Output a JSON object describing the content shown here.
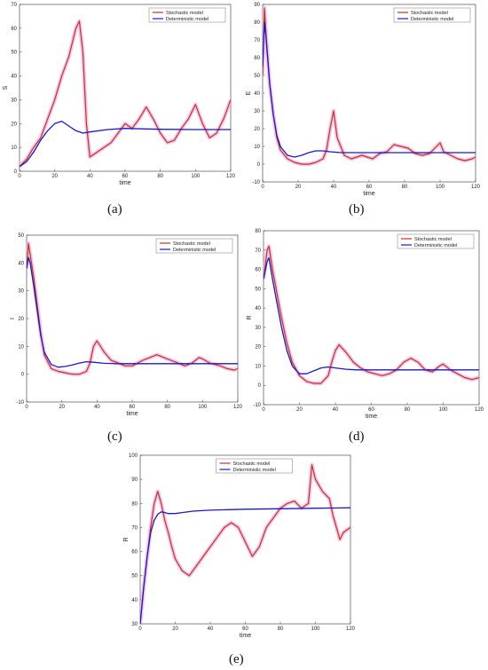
{
  "panel_labels": [
    "(a)",
    "(b)",
    "(c)",
    "(d)",
    "(e)"
  ],
  "colors": {
    "stochastic": "#c8321a",
    "band": "#f0b8e8",
    "deterministic": "#1a1ac8"
  },
  "chart_data": [
    {
      "type": "line",
      "title": "",
      "xlabel": "time",
      "ylabel": "S",
      "xlim": [
        0,
        120
      ],
      "ylim": [
        0,
        70
      ],
      "xticks": [
        0,
        20,
        40,
        60,
        80,
        100,
        120
      ],
      "yticks": [
        0,
        10,
        20,
        30,
        40,
        50,
        60,
        70
      ],
      "legend": {
        "position": "top-right",
        "entries": [
          "Stochastic model",
          "Deterministic model"
        ]
      },
      "series": [
        {
          "name": "Stochastic model",
          "x": [
            0,
            4,
            8,
            12,
            16,
            20,
            24,
            28,
            32,
            34,
            36,
            38,
            40,
            44,
            48,
            52,
            56,
            60,
            64,
            68,
            72,
            76,
            80,
            84,
            88,
            92,
            96,
            100,
            104,
            108,
            112,
            116,
            120
          ],
          "y": [
            2,
            5,
            10,
            14,
            22,
            30,
            40,
            48,
            60,
            63,
            50,
            20,
            6,
            8,
            10,
            12,
            16,
            20,
            18,
            22,
            27,
            22,
            16,
            12,
            13,
            18,
            22,
            28,
            20,
            14,
            16,
            22,
            30
          ]
        },
        {
          "name": "Deterministic model",
          "x": [
            0,
            4,
            8,
            12,
            16,
            20,
            24,
            28,
            32,
            36,
            40,
            50,
            60,
            70,
            80,
            100,
            120
          ],
          "y": [
            2,
            4,
            8,
            13,
            17,
            20,
            21,
            19,
            17,
            16,
            16.5,
            17.5,
            18,
            17.8,
            17.6,
            17.5,
            17.5
          ]
        }
      ]
    },
    {
      "type": "line",
      "title": "",
      "xlabel": "time",
      "ylabel": "E",
      "xlim": [
        0,
        120
      ],
      "ylim": [
        -10,
        90
      ],
      "xticks": [
        0,
        20,
        40,
        60,
        80,
        100,
        120
      ],
      "yticks": [
        -10,
        0,
        10,
        20,
        30,
        40,
        50,
        60,
        70,
        80,
        90
      ],
      "legend": {
        "position": "top-right",
        "entries": [
          "Stochastic model",
          "Deterministic model"
        ]
      },
      "series": [
        {
          "name": "Stochastic model",
          "x": [
            0,
            1,
            2,
            4,
            6,
            8,
            10,
            14,
            18,
            22,
            26,
            30,
            34,
            36,
            38,
            40,
            42,
            46,
            50,
            56,
            62,
            66,
            70,
            74,
            78,
            82,
            86,
            90,
            94,
            98,
            100,
            102,
            106,
            110,
            114,
            118,
            120
          ],
          "y": [
            50,
            88,
            72,
            45,
            28,
            15,
            8,
            3,
            1,
            0,
            0,
            1,
            3,
            8,
            20,
            30,
            15,
            5,
            3,
            5,
            3,
            6,
            7,
            11,
            10,
            9,
            6,
            5,
            6,
            10,
            12,
            7,
            5,
            3,
            2,
            3,
            4
          ]
        },
        {
          "name": "Deterministic model",
          "x": [
            0,
            1,
            2,
            4,
            6,
            8,
            10,
            14,
            18,
            22,
            26,
            30,
            34,
            38,
            44,
            50,
            60,
            80,
            100,
            120
          ],
          "y": [
            55,
            80,
            70,
            45,
            28,
            16,
            10,
            5,
            4,
            5,
            6.5,
            7.5,
            7.5,
            7,
            6.5,
            6.5,
            6.5,
            6.5,
            6.5,
            6.5
          ]
        }
      ]
    },
    {
      "type": "line",
      "title": "",
      "xlabel": "time",
      "ylabel": "I",
      "xlim": [
        0,
        120
      ],
      "ylim": [
        -10,
        50
      ],
      "xticks": [
        0,
        20,
        40,
        60,
        80,
        100,
        120
      ],
      "yticks": [
        -10,
        0,
        10,
        20,
        30,
        40,
        50
      ],
      "legend": {
        "position": "top-right",
        "entries": [
          "Stochastic model",
          "Deterministic model"
        ]
      },
      "series": [
        {
          "name": "Stochastic model",
          "x": [
            0,
            1,
            2,
            4,
            6,
            8,
            10,
            14,
            18,
            22,
            26,
            30,
            34,
            36,
            38,
            40,
            44,
            48,
            52,
            56,
            60,
            66,
            70,
            74,
            78,
            82,
            86,
            90,
            94,
            98,
            100,
            104,
            110,
            114,
            118,
            120
          ],
          "y": [
            38,
            47,
            43,
            35,
            25,
            15,
            7,
            2,
            1,
            0.5,
            0,
            0,
            1,
            4,
            10,
            12,
            8,
            5,
            4,
            3,
            3,
            5,
            6,
            7,
            6,
            5,
            4,
            3,
            4,
            6,
            5.5,
            4,
            3,
            2,
            1.5,
            2
          ]
        },
        {
          "name": "Deterministic model",
          "x": [
            0,
            1,
            2,
            4,
            6,
            8,
            10,
            14,
            18,
            22,
            26,
            30,
            34,
            38,
            44,
            50,
            60,
            80,
            100,
            120
          ],
          "y": [
            38,
            42,
            40,
            32,
            23,
            14,
            8,
            3.5,
            2.5,
            2.8,
            3.3,
            4,
            4.5,
            4.3,
            3.9,
            3.8,
            3.8,
            3.8,
            3.8,
            3.8
          ]
        }
      ]
    },
    {
      "type": "line",
      "title": "",
      "xlabel": "time",
      "ylabel": "R",
      "xlim": [
        0,
        120
      ],
      "ylim": [
        -10,
        80
      ],
      "xticks": [
        0,
        20,
        40,
        60,
        80,
        100,
        120
      ],
      "yticks": [
        -10,
        0,
        10,
        20,
        30,
        40,
        50,
        60,
        70,
        80
      ],
      "legend": {
        "position": "top-right",
        "entries": [
          "Stochastic model",
          "Deterministic model"
        ]
      },
      "series": [
        {
          "name": "Stochastic model",
          "x": [
            0,
            2,
            3,
            5,
            8,
            10,
            13,
            16,
            20,
            24,
            28,
            32,
            36,
            38,
            40,
            42,
            46,
            50,
            54,
            58,
            62,
            66,
            70,
            74,
            78,
            82,
            86,
            90,
            94,
            98,
            100,
            104,
            108,
            112,
            116,
            120
          ],
          "y": [
            55,
            70,
            72,
            60,
            45,
            35,
            22,
            12,
            5,
            2,
            1,
            1,
            5,
            12,
            18,
            21,
            17,
            12,
            9,
            7,
            6,
            5,
            6,
            8,
            12,
            14,
            12,
            8,
            7,
            10,
            11,
            8,
            6,
            4,
            3,
            4
          ]
        },
        {
          "name": "Deterministic model",
          "x": [
            0,
            2,
            3,
            5,
            8,
            10,
            13,
            16,
            20,
            24,
            28,
            32,
            36,
            40,
            46,
            52,
            60,
            80,
            100,
            120
          ],
          "y": [
            55,
            64,
            66,
            55,
            40,
            30,
            18,
            10,
            6,
            6,
            7.5,
            9,
            9.5,
            9,
            8.3,
            8,
            8,
            8,
            8,
            8
          ]
        }
      ]
    },
    {
      "type": "line",
      "title": "",
      "xlabel": "time",
      "ylabel": "R",
      "xlim": [
        0,
        120
      ],
      "ylim": [
        30,
        100
      ],
      "xticks": [
        0,
        20,
        40,
        60,
        80,
        100,
        120
      ],
      "yticks": [
        30,
        40,
        50,
        60,
        70,
        80,
        90,
        100
      ],
      "legend": {
        "position": "top-center",
        "entries": [
          "Stochastic model",
          "Deterministic model"
        ]
      },
      "series": [
        {
          "name": "Stochastic model",
          "x": [
            0,
            2,
            4,
            6,
            8,
            10,
            12,
            14,
            16,
            18,
            20,
            24,
            28,
            32,
            36,
            40,
            44,
            48,
            52,
            56,
            60,
            64,
            68,
            72,
            76,
            80,
            84,
            88,
            92,
            96,
            98,
            100,
            104,
            108,
            110,
            112,
            114,
            116,
            120
          ],
          "y": [
            30,
            45,
            58,
            70,
            80,
            85,
            80,
            73,
            68,
            62,
            57,
            52,
            50,
            54,
            58,
            62,
            66,
            70,
            72,
            70,
            64,
            58,
            62,
            70,
            74,
            78,
            80,
            81,
            78,
            80,
            96,
            90,
            85,
            82,
            75,
            70,
            65,
            68,
            70
          ]
        },
        {
          "name": "Deterministic model",
          "x": [
            0,
            2,
            4,
            6,
            8,
            10,
            12,
            14,
            16,
            20,
            24,
            30,
            40,
            60,
            80,
            100,
            120
          ],
          "y": [
            30,
            45,
            58,
            68,
            73,
            75.5,
            76.5,
            76.2,
            75.8,
            75.8,
            76.2,
            76.8,
            77.2,
            77.6,
            77.8,
            78,
            78.2
          ]
        }
      ]
    }
  ]
}
